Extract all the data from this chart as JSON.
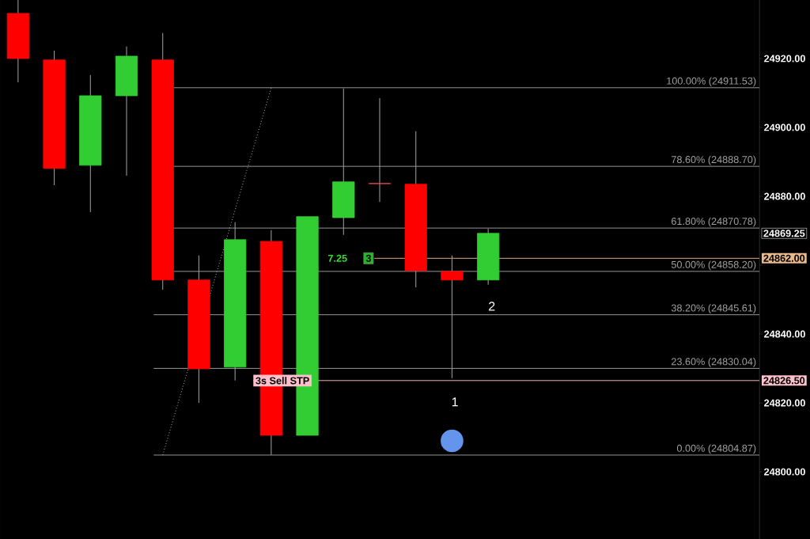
{
  "chart_data": {
    "type": "candlestick",
    "categories": [
      null,
      null,
      null,
      null,
      null,
      null,
      null,
      null,
      null,
      null,
      null,
      null,
      null,
      null,
      null,
      null,
      null,
      null,
      null,
      null,
      null
    ],
    "ohlc": [
      [
        24933.1,
        24937.0,
        24913.1,
        24920.0
      ],
      [
        24919.6,
        24922.3,
        24883.2,
        24888.1
      ],
      [
        24889.0,
        24915.2,
        24875.4,
        24909.2
      ],
      [
        24909.2,
        24923.5,
        24886.0,
        24920.7
      ],
      [
        24919.6,
        24927.4,
        24852.9,
        24855.7
      ],
      [
        24855.7,
        24862.8,
        24820.0,
        24829.9
      ],
      [
        24830.4,
        24872.5,
        24826.5,
        24867.4
      ],
      [
        24866.9,
        24870.2,
        24804.9,
        24810.6
      ],
      [
        24810.6,
        24874.1,
        24810.6,
        24874.1
      ],
      [
        24873.8,
        24911.3,
        24868.8,
        24884.2
      ],
      [
        24883.7,
        24908.5,
        24878.4,
        24883.7
      ],
      [
        24883.5,
        24898.9,
        24853.6,
        24858.4
      ],
      [
        24858.2,
        24862.8,
        24827.2,
        24855.7
      ],
      [
        24855.7,
        24870.6,
        24854.3,
        24869.25
      ],
      null,
      null,
      null,
      null,
      null,
      null,
      null
    ],
    "colors": [
      "#ff0000",
      "#ff0000",
      "#32cd32",
      "#32cd32",
      "#ff0000",
      "#ff0000",
      "#32cd32",
      "#ff0000",
      "#32cd32",
      "#32cd32",
      "#ff5050",
      "#ff0000",
      "#ff0000",
      "#32cd32",
      null,
      null,
      null,
      null,
      null,
      null,
      null
    ],
    "series": [
      {
        "type": "line",
        "line_style": "dotted",
        "color": "#c8c8c8",
        "values": [
          null,
          null,
          null,
          null,
          24804.9,
          null,
          null,
          24911.5,
          null,
          null,
          null,
          null,
          null,
          null,
          null,
          null,
          null,
          null,
          null,
          null,
          null
        ]
      },
      {
        "type": "scatter",
        "marker": "circle",
        "color": "#6495ed",
        "values": [
          null,
          null,
          null,
          null,
          null,
          null,
          null,
          null,
          null,
          null,
          null,
          null,
          24809.0,
          null,
          null,
          null,
          null,
          null,
          null,
          null,
          null
        ]
      }
    ],
    "ylim": [
      24780.5,
      24937.0
    ],
    "yticks": [
      {
        "value": 24800,
        "label": "24800.00"
      },
      {
        "value": 24820,
        "label": "24820.00"
      },
      {
        "value": 24840,
        "label": "24840.00"
      },
      {
        "value": 24860,
        "label": null
      },
      {
        "value": 24880,
        "label": "24880.00"
      },
      {
        "value": 24900,
        "label": "24900.00"
      },
      {
        "value": 24920,
        "label": "24920.00"
      }
    ],
    "tick_labels": "y",
    "ref_lines": [
      {
        "axis": "y",
        "value": 24911.53,
        "label": "100.00% (24911.53)",
        "color": "#a0a0a0"
      },
      {
        "axis": "y",
        "value": 24888.7,
        "label": "78.60% (24888.70)",
        "color": "#a0a0a0"
      },
      {
        "axis": "y",
        "value": 24870.78,
        "label": "61.80% (24870.78)",
        "color": "#a0a0a0"
      },
      {
        "axis": "y",
        "value": 24858.2,
        "label": "50.00% (24858.20)",
        "color": "#a0a0a0"
      },
      {
        "axis": "y",
        "value": 24845.61,
        "label": "38.20% (24845.61)",
        "color": "#a0a0a0"
      },
      {
        "axis": "y",
        "value": 24830.04,
        "label": "23.60% (24830.04)",
        "color": "#a0a0a0"
      },
      {
        "axis": "y",
        "value": 24804.87,
        "label": "0.00% (24804.87)",
        "color": "#a0a0a0"
      },
      {
        "axis": "y",
        "value": 24862.0,
        "label": "24862.00",
        "color": "#e8b888"
      },
      {
        "axis": "y",
        "value": 24826.5,
        "label": "24826.50",
        "color": "#ffc0cb"
      }
    ],
    "annotations": [
      {
        "text": "3s Sell STP",
        "y": 24826.5
      },
      "7.25",
      "3",
      "24869.25",
      "1",
      "2"
    ]
  }
}
